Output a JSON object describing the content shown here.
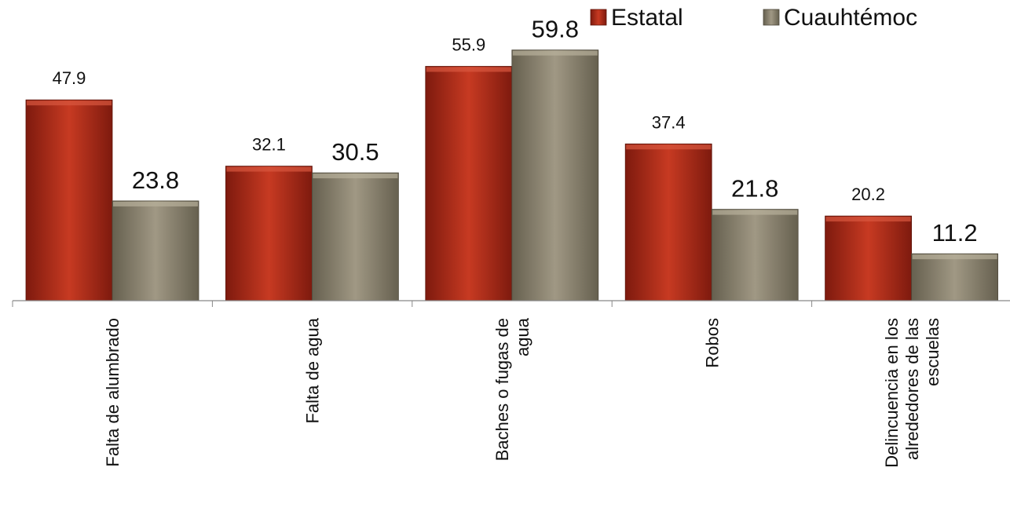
{
  "chart_data": {
    "type": "bar",
    "categories": [
      [
        "Falta de alumbrado"
      ],
      [
        "Falta de agua"
      ],
      [
        "Baches o fugas de",
        "agua"
      ],
      [
        "Robos"
      ],
      [
        "Delincuencia en los",
        "alrededores de las",
        "escuelas"
      ]
    ],
    "series": [
      {
        "name": "Estatal",
        "values": [
          47.9,
          32.1,
          55.9,
          37.4,
          20.2
        ],
        "color": "#b5321f"
      },
      {
        "name": "Cuauhtémoc",
        "values": [
          23.8,
          30.5,
          59.8,
          21.8,
          11.2
        ],
        "color": "#8c8470"
      }
    ],
    "value_labels": {
      "Estatal": [
        "47.9",
        "32.1",
        "55.9",
        "37.4",
        "20.2"
      ],
      "Cuauhtémoc": [
        "23.8",
        "30.5",
        "59.8",
        "21.8",
        "11.2"
      ]
    },
    "title": "",
    "xlabel": "",
    "ylabel": "",
    "ylim": [
      0,
      60
    ],
    "grid": false,
    "legend": "top-right",
    "category_label_orientation": "vertical"
  }
}
